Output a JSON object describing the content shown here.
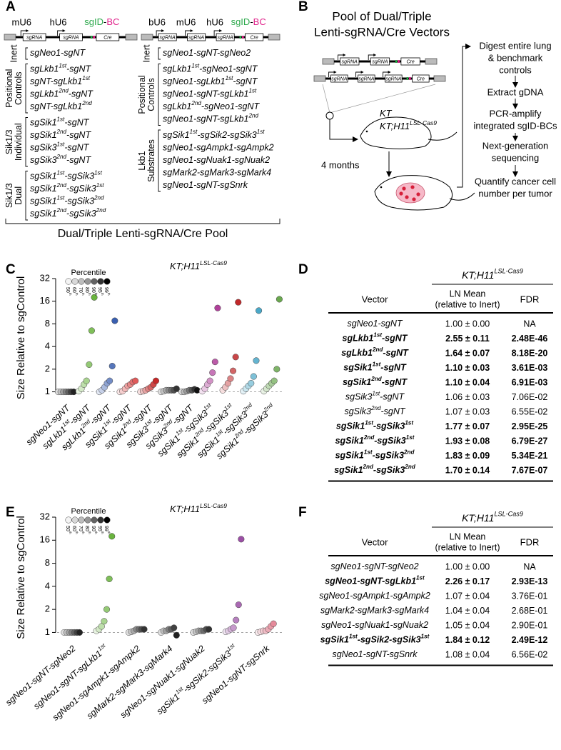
{
  "construct_labels": {
    "sgrna": "sgRNA",
    "cre": "Cre"
  },
  "panel_a": {
    "letter": "A",
    "construct_left": {
      "promoters": [
        "mU6",
        "hU6"
      ],
      "barcode": [
        "sgID",
        "-",
        "BC"
      ]
    },
    "construct_right": {
      "promoters": [
        "bU6",
        "mU6",
        "hU6"
      ],
      "barcode": [
        "sgID",
        "-",
        "BC"
      ]
    },
    "groups_left": [
      {
        "name": [
          "Inert"
        ],
        "items": [
          [
            "sgNeo1-sgNT"
          ]
        ]
      },
      {
        "name": [
          "Positional",
          "Controls"
        ],
        "items": [
          [
            "sgLkb1",
            "1st",
            "-sgNT"
          ],
          [
            "sgNT-sgLkb1",
            "1st"
          ],
          [
            "sgLkb1",
            "2nd",
            "-sgNT"
          ],
          [
            "sgNT-sgLkb1",
            "2nd"
          ]
        ]
      },
      {
        "name": [
          "Sik1/3",
          "Individual"
        ],
        "items": [
          [
            "sgSik1",
            "1st",
            "-sgNT"
          ],
          [
            "sgSik1",
            "2nd",
            "-sgNT"
          ],
          [
            "sgSik3",
            "1st",
            "-sgNT"
          ],
          [
            "sgSik3",
            "2nd",
            "-sgNT"
          ]
        ]
      },
      {
        "name": [
          "Sik1/3",
          "Dual"
        ],
        "items": [
          [
            "sgSik1",
            "1st",
            "-sgSik3",
            "1st"
          ],
          [
            "sgSik1",
            "2nd",
            "-sgSik3",
            "1st"
          ],
          [
            "sgSik1",
            "1st",
            "-sgSik3",
            "2nd"
          ],
          [
            "sgSik1",
            "2nd",
            "-sgSik3",
            "2nd"
          ]
        ]
      }
    ],
    "groups_right": [
      {
        "name": [
          "Inert"
        ],
        "items": [
          [
            "sgNeo1-sgNT-sgNeo2"
          ]
        ]
      },
      {
        "name": [
          "Positional",
          "Controls"
        ],
        "items": [
          [
            "sgLkb1",
            "1st",
            "-sgNeo1-sgNT"
          ],
          [
            "sgNeo1-sgLkb1",
            "1st",
            "-sgNT"
          ],
          [
            "sgNeo1-sgNT-sgLkb1",
            "1st"
          ],
          [
            "sgLkb1",
            "2nd",
            "-sgNeo1-sgNT"
          ],
          [
            "sgNeo1-sgNT-sgLkb1",
            "2nd"
          ]
        ]
      },
      {
        "name": [
          "Lkb1",
          "Substrates"
        ],
        "items": [
          [
            "sgSik1",
            "1st",
            "-sgSik2-sgSik3",
            "1st"
          ],
          [
            "sgNeo1-sgAmpk1-sgAmpk2"
          ],
          [
            "sgNeo1-sgNuak1-sgNuak2"
          ],
          [
            "sgMark2-sgMark3-sgMark4"
          ],
          [
            "sgNeo1-sgNT-sgSnrk"
          ]
        ]
      }
    ],
    "footer": "Dual/Triple Lenti-sgRNA/Cre Pool"
  },
  "panel_b": {
    "letter": "B",
    "title": [
      "Pool of Dual/Triple",
      "Lenti-sgRNA/Cre Vectors"
    ],
    "mouse_labels": [
      [
        "KT"
      ],
      [
        "KT;H11",
        "LSL-Cas9"
      ]
    ],
    "duration": "4 months",
    "steps": [
      [
        "Digest entire lung",
        "& benchmark",
        "controls"
      ],
      [
        "Extract gDNA"
      ],
      [
        "PCR-amplify",
        "integrated sgID-BCs"
      ],
      [
        "Next-generation",
        "sequencing"
      ],
      [
        "Quantify cancer cell",
        "number per tumor"
      ]
    ]
  },
  "chart_data": [
    {
      "type": "dot",
      "letter": "C",
      "title": [
        "KT;H11",
        "LSL-Cas9"
      ],
      "y_label": "Size Relative to sgControl",
      "legend_title": "Percentile",
      "log_scale": true,
      "log_base": 2,
      "ylim": [
        0.85,
        32
      ],
      "yticks": [
        1,
        2,
        4,
        8,
        16,
        32
      ],
      "reference_line": 1,
      "categories": [
        [
          "sgNeo1-sgNT"
        ],
        [
          "sgLkb1",
          "1st",
          "-sgNT"
        ],
        [
          "sgLkb1",
          "2nd",
          "-sgNT"
        ],
        [
          "sgSik1",
          "1st",
          "-sgNT"
        ],
        [
          "sgSik1",
          "2nd",
          "-sgNT"
        ],
        [
          "sgSik3",
          "1st",
          "-sgNT"
        ],
        [
          "sgSik3",
          "2nd",
          "-sgNT"
        ],
        [
          "sgSik1",
          "1st",
          "-sgSik3",
          "1st"
        ],
        [
          "sgSik1",
          "2nd",
          "-sgSik3",
          "1st"
        ],
        [
          "sgSik1",
          "1st",
          "-sgSik3",
          "2nd"
        ],
        [
          "sgSik1",
          "2nd",
          "-sgSik3",
          "2nd"
        ]
      ],
      "category_colors": [
        "#222222",
        "#6ab43e",
        "#3a5fb0",
        "#e05a5a",
        "#c62828",
        "#333333",
        "#111111",
        "#b0409a",
        "#c0282a",
        "#4aa8c8",
        "#6aa84f"
      ],
      "series": [
        {
          "name": [
            "50",
            "th"
          ],
          "color": "#f4f4f4",
          "values": [
            1,
            1.02,
            1,
            1,
            1,
            1,
            1,
            1.02,
            1.05,
            1.02,
            1.02
          ]
        },
        {
          "name": [
            "60",
            "th"
          ],
          "color": "#d9d9d9",
          "values": [
            1,
            1.1,
            1.05,
            1.02,
            1.02,
            1.02,
            1,
            1.1,
            1.15,
            1.1,
            1.1
          ]
        },
        {
          "name": [
            "70",
            "th"
          ],
          "color": "#bdbdbd",
          "values": [
            1,
            1.25,
            1.15,
            1.1,
            1.05,
            1.05,
            1.02,
            1.25,
            1.3,
            1.2,
            1.2
          ]
        },
        {
          "name": [
            "80",
            "th"
          ],
          "color": "#969696",
          "values": [
            1,
            1.4,
            1.3,
            1.2,
            1.1,
            1.05,
            1.05,
            1.4,
            1.5,
            1.3,
            1.3
          ]
        },
        {
          "name": [
            "90",
            "th"
          ],
          "color": "#636363",
          "values": [
            1,
            2.3,
            1.4,
            1.25,
            1.15,
            1.05,
            1.05,
            1.8,
            1.9,
            1.6,
            1.4
          ]
        },
        {
          "name": [
            "95",
            "th"
          ],
          "color": "#333333",
          "values": [
            1,
            6.5,
            2.2,
            1.35,
            1.25,
            1.05,
            1.08,
            2.5,
            2.9,
            2.6,
            2
          ]
        },
        {
          "name": [
            "99",
            "th"
          ],
          "color": "#000000",
          "values": [
            1,
            18,
            8.8,
            1.4,
            1.4,
            1.1,
            1.05,
            13,
            15.5,
            12,
            17
          ]
        }
      ]
    },
    {
      "type": "dot",
      "letter": "E",
      "title": [
        "KT;H11",
        "LSL-Cas9"
      ],
      "y_label": "Size Relative to sgControl",
      "legend_title": "Percentile",
      "log_scale": true,
      "log_base": 2,
      "ylim": [
        0.85,
        32
      ],
      "yticks": [
        1,
        2,
        4,
        8,
        16,
        32
      ],
      "reference_line": 1,
      "categories": [
        [
          "sgNeo1-sgNT-sgNeo2"
        ],
        [
          "sgNeo1-sgNT-sgLkb1",
          "1st"
        ],
        [
          "sgNeo1-sgAmpk1-sgAmpk2"
        ],
        [
          "sgMark2-sgMark3-sgMark4"
        ],
        [
          "sgNeo1-sgNuak1-sgNuak2"
        ],
        [
          "sgSik1",
          "1st",
          "-sgSik2-sgSik3",
          "1st"
        ],
        [
          "sgNeo1-sgNT-sgSnrk"
        ]
      ],
      "category_colors": [
        "#222222",
        "#6ab43e",
        "#333333",
        "#222222",
        "#333333",
        "#9b4fa5",
        "#e58a9a"
      ],
      "series": [
        {
          "name": [
            "50",
            "th"
          ],
          "color": "#f4f4f4",
          "values": [
            1,
            1.05,
            1,
            1,
            1,
            1.02,
            1
          ]
        },
        {
          "name": [
            "60",
            "th"
          ],
          "color": "#d9d9d9",
          "values": [
            1,
            1.1,
            1.02,
            1.05,
            1.02,
            1.05,
            1.02
          ]
        },
        {
          "name": [
            "70",
            "th"
          ],
          "color": "#bdbdbd",
          "values": [
            1,
            1.2,
            1.05,
            1.05,
            1.05,
            1.1,
            1.05
          ]
        },
        {
          "name": [
            "80",
            "th"
          ],
          "color": "#969696",
          "values": [
            1,
            1.4,
            1.1,
            1.1,
            1.05,
            1.15,
            1.05
          ]
        },
        {
          "name": [
            "90",
            "th"
          ],
          "color": "#636363",
          "values": [
            1,
            2,
            1.1,
            1.1,
            1.05,
            1.45,
            1.1
          ]
        },
        {
          "name": [
            "95",
            "th"
          ],
          "color": "#333333",
          "values": [
            1,
            5,
            1.1,
            1.15,
            1.1,
            2.3,
            1.2
          ]
        },
        {
          "name": [
            "99",
            "th"
          ],
          "color": "#000000",
          "values": [
            1,
            18,
            1.1,
            0.92,
            1.1,
            16.5,
            1.3
          ]
        }
      ]
    }
  ],
  "panel_d": {
    "letter": "D",
    "header": [
      "KT;H11",
      "LSL-Cas9"
    ],
    "columns": {
      "vector": "Vector",
      "mean": [
        "LN Mean",
        "(relative to Inert)"
      ],
      "fdr": "FDR"
    },
    "rows": [
      {
        "vector": [
          "sgNeo1-sgNT"
        ],
        "mean": "1.00 ± 0.00",
        "fdr": "NA",
        "significant": false
      },
      {
        "vector": [
          "sgLkb1",
          "1st",
          "-sgNT"
        ],
        "mean": "2.55 ± 0.11",
        "fdr": "2.48E-46",
        "significant": true
      },
      {
        "vector": [
          "sgLkb1",
          "2nd",
          "-sgNT"
        ],
        "mean": "1.64 ± 0.07",
        "fdr": "8.18E-20",
        "significant": true
      },
      {
        "vector": [
          "sgSik1",
          "1st",
          "-sgNT"
        ],
        "mean": "1.10 ± 0.03",
        "fdr": "3.61E-03",
        "significant": true
      },
      {
        "vector": [
          "sgSik1",
          "2nd",
          "-sgNT"
        ],
        "mean": "1.10 ± 0.04",
        "fdr": "6.91E-03",
        "significant": true
      },
      {
        "vector": [
          "sgSik3",
          "1st",
          "-sgNT"
        ],
        "mean": "1.06 ± 0.03",
        "fdr": "7.06E-02",
        "significant": false
      },
      {
        "vector": [
          "sgSik3",
          "2nd",
          "-sgNT"
        ],
        "mean": "1.07 ± 0.03",
        "fdr": "6.55E-02",
        "significant": false
      },
      {
        "vector": [
          "sgSik1",
          "1st",
          "-sgSik3",
          "1st"
        ],
        "mean": "1.77 ± 0.07",
        "fdr": "2.95E-25",
        "significant": true
      },
      {
        "vector": [
          "sgSik1",
          "2nd",
          "-sgSik3",
          "1st"
        ],
        "mean": "1.93 ± 0.08",
        "fdr": "6.79E-27",
        "significant": true
      },
      {
        "vector": [
          "sgSik1",
          "1st",
          "-sgSik3",
          "2nd"
        ],
        "mean": "1.83 ± 0.09",
        "fdr": "5.34E-21",
        "significant": true
      },
      {
        "vector": [
          "sgSik1",
          "2nd",
          "-sgSik3",
          "2nd"
        ],
        "mean": "1.70 ± 0.14",
        "fdr": "7.67E-07",
        "significant": true
      }
    ]
  },
  "panel_f": {
    "letter": "F",
    "header": [
      "KT;H11",
      "LSL-Cas9"
    ],
    "columns": {
      "vector": "Vector",
      "mean": [
        "LN Mean",
        "(relative to Inert)"
      ],
      "fdr": "FDR"
    },
    "rows": [
      {
        "vector": [
          "sgNeo1-sgNT-sgNeo2"
        ],
        "mean": "1.00 ± 0.00",
        "fdr": "NA",
        "significant": false
      },
      {
        "vector": [
          "sgNeo1-sgNT-sgLkb1",
          "1st"
        ],
        "mean": "2.26 ± 0.17",
        "fdr": "2.93E-13",
        "significant": true
      },
      {
        "vector": [
          "sgNeo1-sgAmpk1-sgAmpk2"
        ],
        "mean": "1.07 ± 0.04",
        "fdr": "3.76E-01",
        "significant": false
      },
      {
        "vector": [
          "sgMark2-sgMark3-sgMark4"
        ],
        "mean": "1.04 ± 0.04",
        "fdr": "2.68E-01",
        "significant": false
      },
      {
        "vector": [
          "sgNeo1-sgNuak1-sgNuak2"
        ],
        "mean": "1.05 ± 0.04",
        "fdr": "2.90E-01",
        "significant": false
      },
      {
        "vector": [
          "sgSik1",
          "1st",
          "-sgSik2-sgSik3",
          "1st"
        ],
        "mean": "1.84 ± 0.12",
        "fdr": "2.49E-12",
        "significant": true
      },
      {
        "vector": [
          "sgNeo1-sgNT-sgSnrk"
        ],
        "mean": "1.08 ± 0.04",
        "fdr": "6.56E-02",
        "significant": false
      }
    ]
  }
}
